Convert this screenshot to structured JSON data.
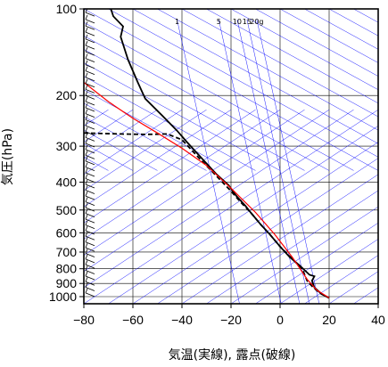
{
  "chart_data": {
    "type": "line",
    "title": "",
    "xlabel": "気温(実線), 露点(破線)",
    "ylabel": "気圧(hPa)",
    "xlim": [
      -80,
      40
    ],
    "ylim": [
      1050,
      100
    ],
    "y_scale": "log",
    "x_ticks": [
      -80,
      -60,
      -40,
      -20,
      0,
      20,
      40
    ],
    "x_tick_labels": [
      "−80",
      "−60",
      "−40",
      "−20",
      "0",
      "20",
      "40"
    ],
    "y_ticks": [
      100,
      200,
      300,
      400,
      500,
      600,
      700,
      800,
      900,
      1000
    ],
    "y_tick_labels": [
      "100",
      "200",
      "300",
      "400",
      "500",
      "600",
      "700",
      "800",
      "900",
      "1000"
    ],
    "mixing_ratio_labels": [
      {
        "text": "1",
        "x": -42
      },
      {
        "text": "5",
        "x": -25
      },
      {
        "text": "10",
        "x": -17.5
      },
      {
        "text": "15",
        "x": -13.5
      },
      {
        "text": "20g",
        "x": -9.5
      }
    ],
    "colors": {
      "temperature": "#000000",
      "dewpoint": "#000000",
      "parcel": "#ff0000",
      "isotherm": "#0000ff",
      "grid": "#000000"
    },
    "series": [
      {
        "key": "temperature",
        "style": "solid",
        "points": [
          [
            -69,
            100
          ],
          [
            -68,
            106
          ],
          [
            -64,
            115
          ],
          [
            -65,
            125
          ],
          [
            -62,
            150
          ],
          [
            -58,
            180
          ],
          [
            -55,
            205
          ],
          [
            -48,
            235
          ],
          [
            -42,
            265
          ],
          [
            -38,
            290
          ],
          [
            -32,
            330
          ],
          [
            -26,
            375
          ],
          [
            -21,
            410
          ],
          [
            -18,
            445
          ],
          [
            -14,
            485
          ],
          [
            -12,
            510
          ],
          [
            -8,
            560
          ],
          [
            -4,
            610
          ],
          [
            0,
            670
          ],
          [
            4,
            730
          ],
          [
            8,
            780
          ],
          [
            12,
            840
          ],
          [
            14,
            850
          ],
          [
            13,
            880
          ],
          [
            14,
            930
          ],
          [
            17,
            980
          ],
          [
            20,
            1010
          ]
        ]
      },
      {
        "key": "dewpoint",
        "style": "dashed",
        "points": [
          [
            -80,
            270
          ],
          [
            -65,
            272
          ],
          [
            -55,
            273
          ],
          [
            -46,
            272
          ],
          [
            -40,
            285
          ],
          [
            -33,
            330
          ],
          [
            -26,
            380
          ],
          [
            -20,
            430
          ],
          [
            -16,
            470
          ],
          [
            -12,
            510
          ],
          [
            -8,
            560
          ],
          [
            -4,
            610
          ],
          [
            0,
            670
          ],
          [
            5,
            740
          ],
          [
            9,
            800
          ],
          [
            11,
            880
          ],
          [
            13,
            920
          ],
          [
            16,
            970
          ],
          [
            20,
            1010
          ]
        ]
      },
      {
        "key": "parcel",
        "style": "solid",
        "points": [
          [
            -80,
            180
          ],
          [
            -70,
            210
          ],
          [
            -60,
            240
          ],
          [
            -50,
            270
          ],
          [
            -40,
            305
          ],
          [
            -30,
            350
          ],
          [
            -20,
            420
          ],
          [
            -10,
            510
          ],
          [
            -2,
            610
          ],
          [
            5,
            730
          ],
          [
            11,
            870
          ],
          [
            15,
            950
          ],
          [
            20,
            1010
          ]
        ]
      }
    ],
    "wind_barbs": "left side column, every level from 100 to 1000 hPa"
  }
}
